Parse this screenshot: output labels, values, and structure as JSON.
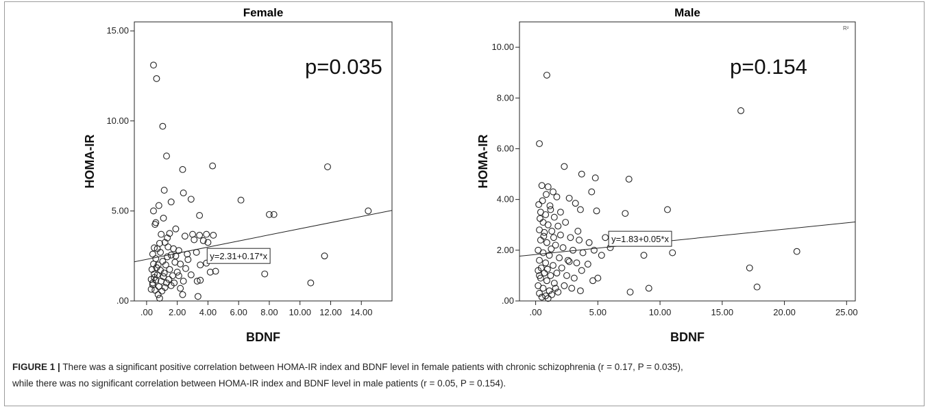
{
  "chart_data": [
    {
      "type": "scatter",
      "title": "Female",
      "xlabel": "BDNF",
      "ylabel": "HOMA-IR",
      "xlim": [
        -0.8,
        16.0
      ],
      "ylim": [
        0,
        15.5
      ],
      "xticks": [
        0,
        2,
        4,
        6,
        8,
        10,
        12,
        14
      ],
      "xtick_labels": [
        ".00",
        "2.00",
        "4.00",
        "6.00",
        "8.00",
        "10.00",
        "12.00",
        "14.00"
      ],
      "yticks": [
        0,
        5,
        10,
        15
      ],
      "ytick_labels": [
        ".00",
        "5.00",
        "10.00",
        "15.00"
      ],
      "p_label": "p=0.035",
      "fit": {
        "intercept": 2.31,
        "slope": 0.17,
        "label": "y=2.31+0.17*x",
        "label_at": [
          6.0,
          2.5
        ]
      },
      "grid": false,
      "points": [
        [
          0.45,
          13.1
        ],
        [
          0.65,
          12.35
        ],
        [
          1.05,
          9.7
        ],
        [
          1.3,
          8.05
        ],
        [
          2.35,
          7.3
        ],
        [
          4.3,
          7.5
        ],
        [
          11.8,
          7.45
        ],
        [
          1.15,
          6.15
        ],
        [
          2.4,
          6.0
        ],
        [
          2.9,
          5.65
        ],
        [
          6.15,
          5.6
        ],
        [
          1.6,
          5.5
        ],
        [
          0.8,
          5.3
        ],
        [
          0.45,
          5.0
        ],
        [
          14.45,
          5.0
        ],
        [
          8.0,
          4.8
        ],
        [
          8.3,
          4.8
        ],
        [
          3.45,
          4.75
        ],
        [
          1.1,
          4.6
        ],
        [
          0.6,
          4.35
        ],
        [
          0.55,
          4.25
        ],
        [
          1.9,
          4.0
        ],
        [
          0.95,
          3.7
        ],
        [
          1.5,
          3.75
        ],
        [
          2.5,
          3.6
        ],
        [
          3.0,
          3.7
        ],
        [
          3.45,
          3.65
        ],
        [
          3.9,
          3.7
        ],
        [
          4.35,
          3.65
        ],
        [
          3.1,
          3.4
        ],
        [
          3.7,
          3.35
        ],
        [
          4.0,
          3.25
        ],
        [
          1.2,
          3.25
        ],
        [
          0.85,
          3.2
        ],
        [
          0.5,
          2.95
        ],
        [
          0.7,
          2.9
        ],
        [
          1.4,
          3.0
        ],
        [
          1.75,
          2.9
        ],
        [
          2.1,
          2.8
        ],
        [
          2.65,
          2.6
        ],
        [
          3.25,
          2.7
        ],
        [
          0.4,
          2.6
        ],
        [
          0.9,
          2.7
        ],
        [
          1.35,
          2.45
        ],
        [
          1.6,
          2.55
        ],
        [
          0.6,
          2.35
        ],
        [
          1.05,
          2.2
        ],
        [
          1.85,
          2.15
        ],
        [
          2.2,
          2.05
        ],
        [
          0.45,
          2.05
        ],
        [
          0.75,
          2.0
        ],
        [
          1.25,
          2.0
        ],
        [
          0.35,
          1.75
        ],
        [
          0.9,
          1.7
        ],
        [
          1.5,
          1.75
        ],
        [
          2.55,
          1.8
        ],
        [
          3.5,
          2.0
        ],
        [
          3.9,
          2.1
        ],
        [
          4.9,
          2.3
        ],
        [
          0.5,
          1.5
        ],
        [
          0.7,
          1.45
        ],
        [
          1.1,
          1.35
        ],
        [
          1.7,
          1.4
        ],
        [
          2.1,
          1.4
        ],
        [
          2.9,
          1.45
        ],
        [
          4.15,
          1.6
        ],
        [
          4.5,
          1.65
        ],
        [
          7.7,
          1.5
        ],
        [
          11.6,
          2.5
        ],
        [
          0.3,
          1.2
        ],
        [
          0.6,
          1.15
        ],
        [
          0.95,
          1.1
        ],
        [
          1.3,
          1.0
        ],
        [
          1.8,
          1.0
        ],
        [
          2.4,
          1.1
        ],
        [
          3.3,
          1.1
        ],
        [
          3.5,
          1.15
        ],
        [
          10.7,
          1.0
        ],
        [
          0.4,
          0.9
        ],
        [
          0.8,
          0.8
        ],
        [
          1.2,
          0.75
        ],
        [
          1.6,
          0.85
        ],
        [
          2.2,
          0.7
        ],
        [
          0.55,
          0.6
        ],
        [
          1.0,
          0.55
        ],
        [
          0.3,
          0.65
        ],
        [
          0.75,
          0.35
        ],
        [
          2.35,
          0.35
        ],
        [
          3.35,
          0.25
        ],
        [
          0.85,
          0.15
        ],
        [
          1.45,
          1.2
        ],
        [
          2.0,
          1.6
        ],
        [
          0.65,
          1.85
        ],
        [
          1.15,
          1.55
        ],
        [
          2.7,
          2.3
        ],
        [
          0.5,
          1.3
        ],
        [
          1.9,
          2.5
        ],
        [
          1.35,
          3.5
        ],
        [
          0.4,
          1.0
        ]
      ]
    },
    {
      "type": "scatter",
      "title": "Male",
      "xlabel": "BDNF",
      "ylabel": "HOMA-IR",
      "xlim": [
        -1.3,
        25.7
      ],
      "ylim": [
        0,
        11.0
      ],
      "xticks": [
        0,
        5,
        10,
        15,
        20,
        25
      ],
      "xtick_labels": [
        ".00",
        "5.00",
        "10.00",
        "15.00",
        "20.00",
        "25.00"
      ],
      "yticks": [
        0,
        2,
        4,
        6,
        8,
        10
      ],
      "ytick_labels": [
        ".00",
        "2.00",
        "4.00",
        "6.00",
        "8.00",
        "10.00"
      ],
      "p_label": "p=0.154",
      "corner_label": "R²",
      "fit": {
        "intercept": 1.83,
        "slope": 0.05,
        "label": "y=1.83+0.05*x",
        "label_at": [
          8.4,
          2.45
        ]
      },
      "grid": false,
      "points": [
        [
          0.9,
          8.9
        ],
        [
          16.5,
          7.5
        ],
        [
          0.3,
          6.2
        ],
        [
          2.3,
          5.3
        ],
        [
          3.7,
          5.0
        ],
        [
          4.8,
          4.85
        ],
        [
          7.5,
          4.8
        ],
        [
          0.5,
          4.55
        ],
        [
          1.0,
          4.5
        ],
        [
          1.4,
          4.3
        ],
        [
          1.7,
          4.1
        ],
        [
          2.7,
          4.05
        ],
        [
          3.2,
          3.85
        ],
        [
          4.5,
          4.3
        ],
        [
          3.6,
          3.6
        ],
        [
          4.9,
          3.55
        ],
        [
          7.2,
          3.45
        ],
        [
          10.6,
          3.6
        ],
        [
          0.4,
          3.5
        ],
        [
          0.8,
          3.4
        ],
        [
          1.2,
          3.6
        ],
        [
          1.5,
          3.3
        ],
        [
          0.6,
          3.1
        ],
        [
          1.0,
          3.0
        ],
        [
          1.8,
          2.95
        ],
        [
          2.4,
          3.1
        ],
        [
          0.3,
          2.8
        ],
        [
          0.7,
          2.7
        ],
        [
          1.3,
          2.75
        ],
        [
          2.0,
          2.6
        ],
        [
          2.8,
          2.5
        ],
        [
          3.5,
          2.4
        ],
        [
          4.3,
          2.3
        ],
        [
          5.6,
          2.5
        ],
        [
          6.0,
          2.1
        ],
        [
          0.4,
          2.4
        ],
        [
          0.9,
          2.3
        ],
        [
          1.6,
          2.2
        ],
        [
          2.2,
          2.1
        ],
        [
          3.0,
          2.0
        ],
        [
          3.8,
          1.9
        ],
        [
          4.7,
          2.0
        ],
        [
          5.3,
          1.8
        ],
        [
          8.7,
          1.8
        ],
        [
          11.0,
          1.9
        ],
        [
          21.0,
          1.95
        ],
        [
          0.2,
          2.0
        ],
        [
          0.6,
          1.9
        ],
        [
          1.1,
          1.8
        ],
        [
          1.9,
          1.7
        ],
        [
          2.6,
          1.6
        ],
        [
          3.3,
          1.5
        ],
        [
          4.2,
          1.45
        ],
        [
          0.3,
          1.6
        ],
        [
          0.8,
          1.5
        ],
        [
          1.4,
          1.4
        ],
        [
          2.1,
          1.3
        ],
        [
          3.7,
          1.2
        ],
        [
          17.2,
          1.3
        ],
        [
          0.2,
          1.2
        ],
        [
          0.7,
          1.1
        ],
        [
          1.2,
          1.0
        ],
        [
          1.7,
          1.1
        ],
        [
          2.5,
          1.0
        ],
        [
          3.1,
          0.9
        ],
        [
          4.6,
          0.8
        ],
        [
          5.0,
          0.9
        ],
        [
          0.4,
          0.9
        ],
        [
          0.9,
          0.8
        ],
        [
          1.5,
          0.7
        ],
        [
          2.3,
          0.6
        ],
        [
          2.9,
          0.5
        ],
        [
          3.6,
          0.4
        ],
        [
          9.1,
          0.5
        ],
        [
          17.8,
          0.55
        ],
        [
          0.2,
          0.6
        ],
        [
          0.6,
          0.5
        ],
        [
          1.1,
          0.4
        ],
        [
          1.8,
          0.35
        ],
        [
          7.6,
          0.35
        ],
        [
          0.3,
          0.3
        ],
        [
          0.8,
          0.2
        ],
        [
          1.3,
          0.25
        ],
        [
          0.5,
          0.15
        ],
        [
          1.0,
          0.1
        ],
        [
          0.25,
          3.8
        ],
        [
          0.55,
          3.95
        ],
        [
          0.85,
          4.2
        ],
        [
          1.15,
          3.75
        ],
        [
          0.35,
          3.25
        ],
        [
          1.45,
          2.5
        ],
        [
          0.45,
          1.3
        ],
        [
          1.25,
          2.05
        ],
        [
          0.65,
          2.55
        ],
        [
          0.95,
          1.25
        ],
        [
          2.0,
          3.5
        ],
        [
          1.6,
          0.5
        ],
        [
          0.3,
          1.0
        ],
        [
          2.7,
          1.55
        ],
        [
          3.4,
          2.75
        ]
      ]
    }
  ],
  "caption": {
    "label": "FIGURE 1 |",
    "line1": "There was a significant positive correlation between HOMA-IR index and BDNF level in female patients with chronic schizophrenia (r = 0.17, P = 0.035),",
    "line2": "while there was no significant correlation between HOMA-IR index and BDNF level in male patients (r = 0.05, P = 0.154)."
  }
}
